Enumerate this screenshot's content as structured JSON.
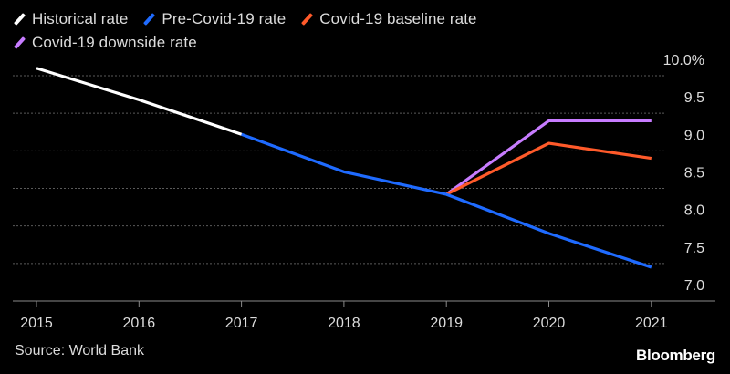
{
  "chart_data": {
    "type": "line",
    "title": "",
    "xlabel": "",
    "ylabel": "",
    "x": [
      "2015",
      "2016",
      "2017",
      "2018",
      "2019",
      "2020",
      "2021"
    ],
    "ylim": [
      7.0,
      10.0
    ],
    "y_ticks": [
      "7.0",
      "7.5",
      "8.0",
      "8.5",
      "9.0",
      "9.5",
      "10.0%"
    ],
    "grid": true,
    "series": [
      {
        "name": "Historical rate",
        "color": "#ffffff",
        "points": [
          [
            "2015",
            10.1
          ],
          [
            "2016",
            9.68
          ],
          [
            "2017",
            9.22
          ]
        ]
      },
      {
        "name": "Pre-Covid-19 rate",
        "color": "#1f6bff",
        "points": [
          [
            "2017",
            9.22
          ],
          [
            "2018",
            8.72
          ],
          [
            "2019",
            8.42
          ],
          [
            "2020",
            7.9
          ],
          [
            "2021",
            7.45
          ]
        ]
      },
      {
        "name": "Covid-19 baseline rate",
        "color": "#ff5a2a",
        "points": [
          [
            "2019",
            8.42
          ],
          [
            "2020",
            9.1
          ],
          [
            "2021",
            8.9
          ]
        ]
      },
      {
        "name": "Covid-19 downside rate",
        "color": "#c77cff",
        "points": [
          [
            "2019",
            8.42
          ],
          [
            "2020",
            9.4
          ],
          [
            "2021",
            9.4
          ]
        ]
      }
    ]
  },
  "legend": {
    "row1": [
      {
        "label": "Historical rate",
        "color": "#ffffff"
      },
      {
        "label": "Pre-Covid-19 rate",
        "color": "#1f6bff"
      },
      {
        "label": "Covid-19 baseline rate",
        "color": "#ff5a2a"
      }
    ],
    "row2": [
      {
        "label": "Covid-19 downside rate",
        "color": "#c77cff"
      }
    ]
  },
  "footer": {
    "source": "Source: World Bank",
    "brand": "Bloomberg"
  }
}
